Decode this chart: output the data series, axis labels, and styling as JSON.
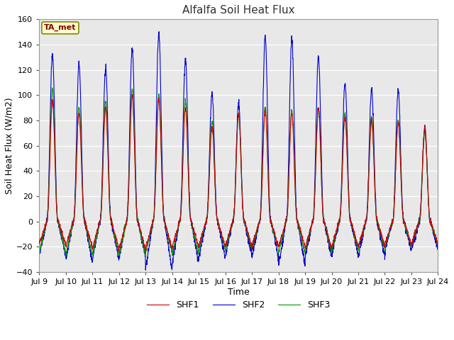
{
  "title": "Alfalfa Soil Heat Flux",
  "xlabel": "Time",
  "ylabel": "Soil Heat Flux (W/m2)",
  "ylim": [
    -40,
    160
  ],
  "yticks": [
    -40,
    -20,
    0,
    20,
    40,
    60,
    80,
    100,
    120,
    140,
    160
  ],
  "xtick_labels": [
    "Jul 9",
    "Jul 10",
    "Jul 11",
    "Jul 12",
    "Jul 13",
    "Jul 14",
    "Jul 15",
    "Jul 16",
    "Jul 17",
    "Jul 18",
    "Jul 19",
    "Jul 20",
    "Jul 21",
    "Jul 22",
    "Jul 23",
    "Jul 24"
  ],
  "legend_entries": [
    "SHF1",
    "SHF2",
    "SHF3"
  ],
  "line_colors": [
    "#cc0000",
    "#0000cc",
    "#009900"
  ],
  "annotation_text": "TA_met",
  "annotation_bg": "#ffffcc",
  "annotation_border": "#888800",
  "fig_bg_color": "#ffffff",
  "plot_bg_color": "#e8e8e8",
  "shf1_peaks": [
    95,
    85,
    90,
    100,
    98,
    90,
    75,
    85,
    88,
    86,
    90,
    82,
    80,
    78,
    75
  ],
  "shf2_peaks": [
    132,
    125,
    121,
    137,
    149,
    128,
    101,
    93,
    146,
    144,
    130,
    110,
    104,
    104,
    73
  ],
  "shf3_peaks": [
    105,
    90,
    95,
    105,
    100,
    95,
    80,
    85,
    90,
    88,
    90,
    85,
    83,
    80,
    70
  ],
  "shf1_troughs": [
    -18,
    -20,
    -22,
    -22,
    -22,
    -20,
    -20,
    -20,
    -20,
    -20,
    -22,
    -20,
    -20,
    -18,
    -18
  ],
  "shf2_troughs": [
    -27,
    -32,
    -30,
    -28,
    -38,
    -32,
    -28,
    -27,
    -28,
    -35,
    -28,
    -26,
    -28,
    -23,
    -22
  ],
  "shf3_troughs": [
    -25,
    -27,
    -26,
    -27,
    -25,
    -26,
    -22,
    -22,
    -22,
    -25,
    -24,
    -22,
    -22,
    -20,
    -18
  ],
  "n_days": 15,
  "n_points_per_day": 144
}
